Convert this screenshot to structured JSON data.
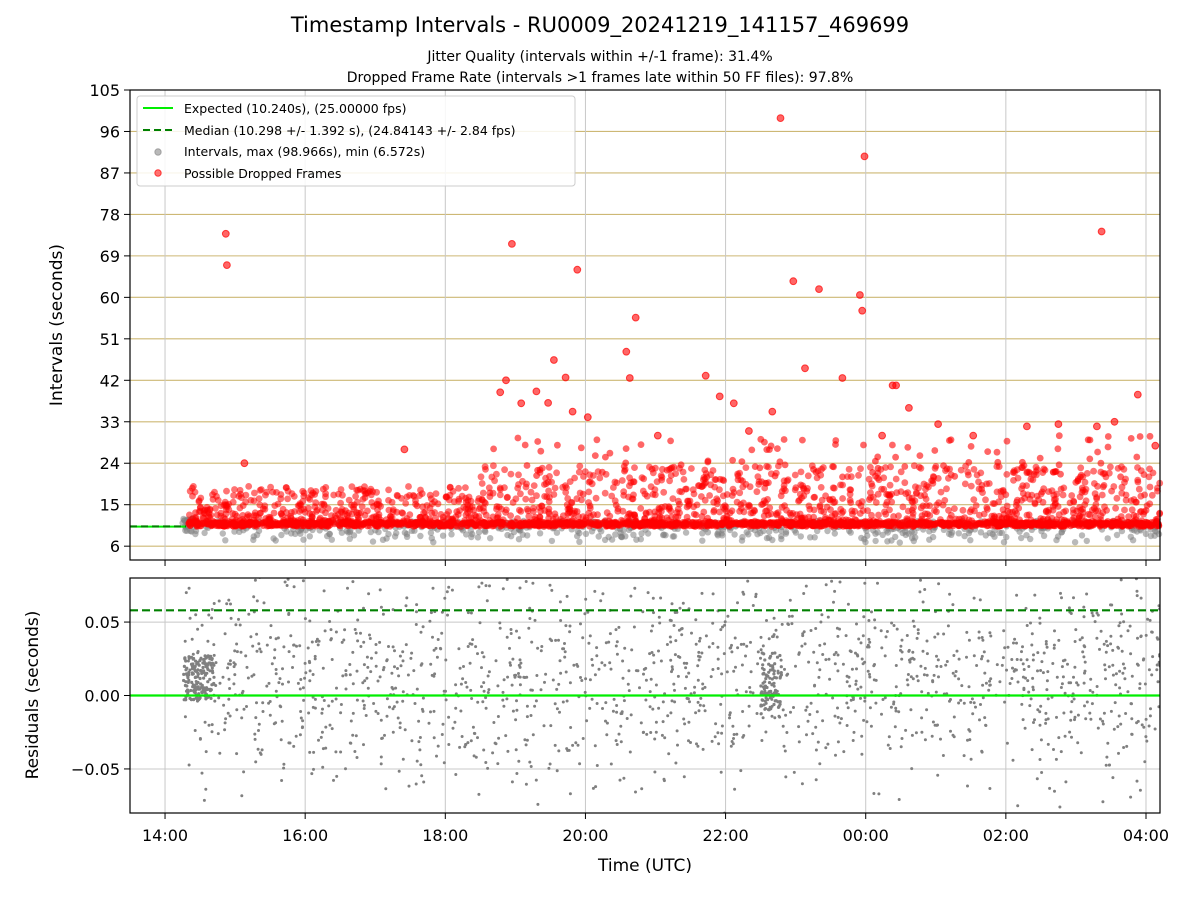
{
  "titles": {
    "main": "Timestamp Intervals - RU0009_20241219_141157_469699",
    "subtitle1": "Jitter Quality (intervals within +/-1 frame): 31.4%",
    "subtitle2": "Dropped Frame Rate (intervals >1 frames late within 50 FF files): 97.8%"
  },
  "chart_data": [
    {
      "type": "scatter",
      "panel": "top",
      "ylabel": "Intervals (seconds)",
      "ylim": [
        3,
        105
      ],
      "yticks": [
        "6",
        "15",
        "24",
        "33",
        "42",
        "51",
        "60",
        "69",
        "78",
        "87",
        "96",
        "105"
      ],
      "grid": "horizontal gridlines at y ticks, vertical gridlines at x ticks",
      "legend": {
        "placement": "top-left",
        "entries": [
          {
            "label": "Expected (10.240s), (25.00000 fps)",
            "style": "solid-line",
            "color": "#00ee00"
          },
          {
            "label": "Median (10.298 +/- 1.392 s), (24.84143 +/- 2.84 fps)",
            "style": "dashed-line",
            "color": "#008000"
          },
          {
            "label": "Intervals, max (98.966s), min (6.572s)",
            "style": "marker",
            "color": "#808080"
          },
          {
            "label": "Possible Dropped Frames",
            "style": "marker",
            "color": "#ff0000"
          }
        ]
      },
      "reference_lines": {
        "expected": 10.24,
        "median": 10.298
      },
      "series": [
        {
          "name": "Possible Dropped Frames",
          "color": "#ff0000",
          "outliers": [
            [
              "14:52",
              73.8
            ],
            [
              "14:53",
              67.0
            ],
            [
              "15:08",
              24.0
            ],
            [
              "18:57",
              71.6
            ],
            [
              "19:53",
              66.0
            ],
            [
              "20:43",
              55.6
            ],
            [
              "20:35",
              48.2
            ],
            [
              "19:33",
              46.4
            ],
            [
              "19:43",
              42.6
            ],
            [
              "18:52",
              42.0
            ],
            [
              "18:47",
              39.4
            ],
            [
              "19:05",
              37.0
            ],
            [
              "19:18",
              39.6
            ],
            [
              "19:28",
              37.1
            ],
            [
              "19:49",
              35.2
            ],
            [
              "20:02",
              34.0
            ],
            [
              "20:38",
              42.5
            ],
            [
              "21:43",
              43.0
            ],
            [
              "21:02",
              30.0
            ],
            [
              "22:07",
              37.0
            ],
            [
              "21:55",
              38.5
            ],
            [
              "22:20",
              31.0
            ],
            [
              "22:40",
              35.2
            ],
            [
              "22:47",
              98.9
            ],
            [
              "22:58",
              63.5
            ],
            [
              "23:08",
              44.6
            ],
            [
              "23:20",
              61.8
            ],
            [
              "23:40",
              42.5
            ],
            [
              "23:55",
              60.5
            ],
            [
              "23:57",
              57.1
            ],
            [
              "23:59",
              90.6
            ],
            [
              "00:14",
              30.0
            ],
            [
              "00:23",
              40.9
            ],
            [
              "00:26",
              40.9
            ],
            [
              "00:37",
              36.0
            ],
            [
              "01:02",
              32.5
            ],
            [
              "01:32",
              30.0
            ],
            [
              "02:18",
              32.0
            ],
            [
              "02:45",
              32.5
            ],
            [
              "03:18",
              32.0
            ],
            [
              "03:22",
              74.3
            ],
            [
              "03:33",
              33.0
            ],
            [
              "03:53",
              38.9
            ],
            [
              "04:08",
              27.8
            ],
            [
              "17:25",
              27.0
            ]
          ],
          "bulk_range": [
            10.3,
            22
          ]
        },
        {
          "name": "Intervals, max (98.966s), min (6.572s)",
          "color": "#808080",
          "bulk_range": [
            6.6,
            11.5
          ]
        }
      ]
    },
    {
      "type": "scatter",
      "panel": "bottom",
      "ylabel": "Residuals (seconds)",
      "xlabel": "Time (UTC)",
      "ylim": [
        -0.08,
        0.08
      ],
      "yticks": [
        "−0.05",
        "0.00",
        "0.05"
      ],
      "xticks": [
        "14:00",
        "16:00",
        "18:00",
        "20:00",
        "22:00",
        "00:00",
        "02:00",
        "04:00"
      ],
      "xrange": [
        "13:30",
        "04:12"
      ],
      "reference_lines": {
        "zero": 0.0,
        "median": 0.058
      },
      "series": [
        {
          "name": "residuals",
          "color": "#808080",
          "bulk_range": [
            -0.08,
            0.08
          ]
        }
      ]
    }
  ]
}
